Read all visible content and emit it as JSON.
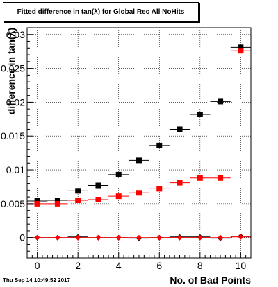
{
  "page": {
    "title": "Fitted difference in tan(λ) for Global Rec All NoHits",
    "timestamp": "Thu Sep 14 10:49:52 2017"
  },
  "chart_data": {
    "type": "scatter",
    "title": "Fitted difference in tan(λ) for Global Rec All NoHits",
    "xlabel": "No. of Bad Points",
    "ylabel": "difference in tan(λ)",
    "xlim": [
      -0.5,
      10.5
    ],
    "ylim": [
      -0.003,
      0.031
    ],
    "grid": true,
    "x_ticks": [
      0,
      2,
      4,
      6,
      8,
      10
    ],
    "y_ticks": [
      0,
      0.005,
      0.01,
      0.015,
      0.02,
      0.025,
      0.03
    ],
    "y_tick_labels": [
      "0",
      "0.005",
      "0.01",
      "0.015",
      "0.02",
      "0.025",
      "0.03"
    ],
    "series": [
      {
        "color": "#000000",
        "marker": "square",
        "x": [
          0,
          1,
          2,
          3,
          4,
          5,
          6,
          7,
          8,
          9,
          10
        ],
        "y": [
          0.0054,
          0.0055,
          0.0069,
          0.0077,
          0.0093,
          0.0114,
          0.0136,
          0.016,
          0.0182,
          0.0201,
          0.0281
        ]
      },
      {
        "color": "#ff0000",
        "marker": "square",
        "x": [
          0,
          1,
          2,
          3,
          4,
          5,
          6,
          7,
          8,
          9,
          10
        ],
        "y": [
          0.005,
          0.005,
          0.0055,
          0.0056,
          0.0061,
          0.0066,
          0.0072,
          0.0081,
          0.0088,
          0.0088,
          0.0276
        ]
      },
      {
        "color": "#000000",
        "marker": "diamond",
        "x": [
          0,
          1,
          2,
          3,
          4,
          5,
          6,
          7,
          8,
          9,
          10
        ],
        "y": [
          0.0,
          0.0,
          0.0001,
          0.0,
          0.0,
          -0.0001,
          0.0,
          0.0001,
          0.0001,
          -0.0001,
          0.0002
        ]
      },
      {
        "color": "#ff0000",
        "marker": "diamond",
        "x": [
          0,
          1,
          2,
          3,
          4,
          5,
          6,
          7,
          8,
          9,
          10
        ],
        "y": [
          0.0,
          0.0,
          0.0,
          0.0,
          0.0,
          0.0,
          0.0,
          0.0,
          0.0,
          0.0,
          0.0001
        ]
      }
    ]
  }
}
